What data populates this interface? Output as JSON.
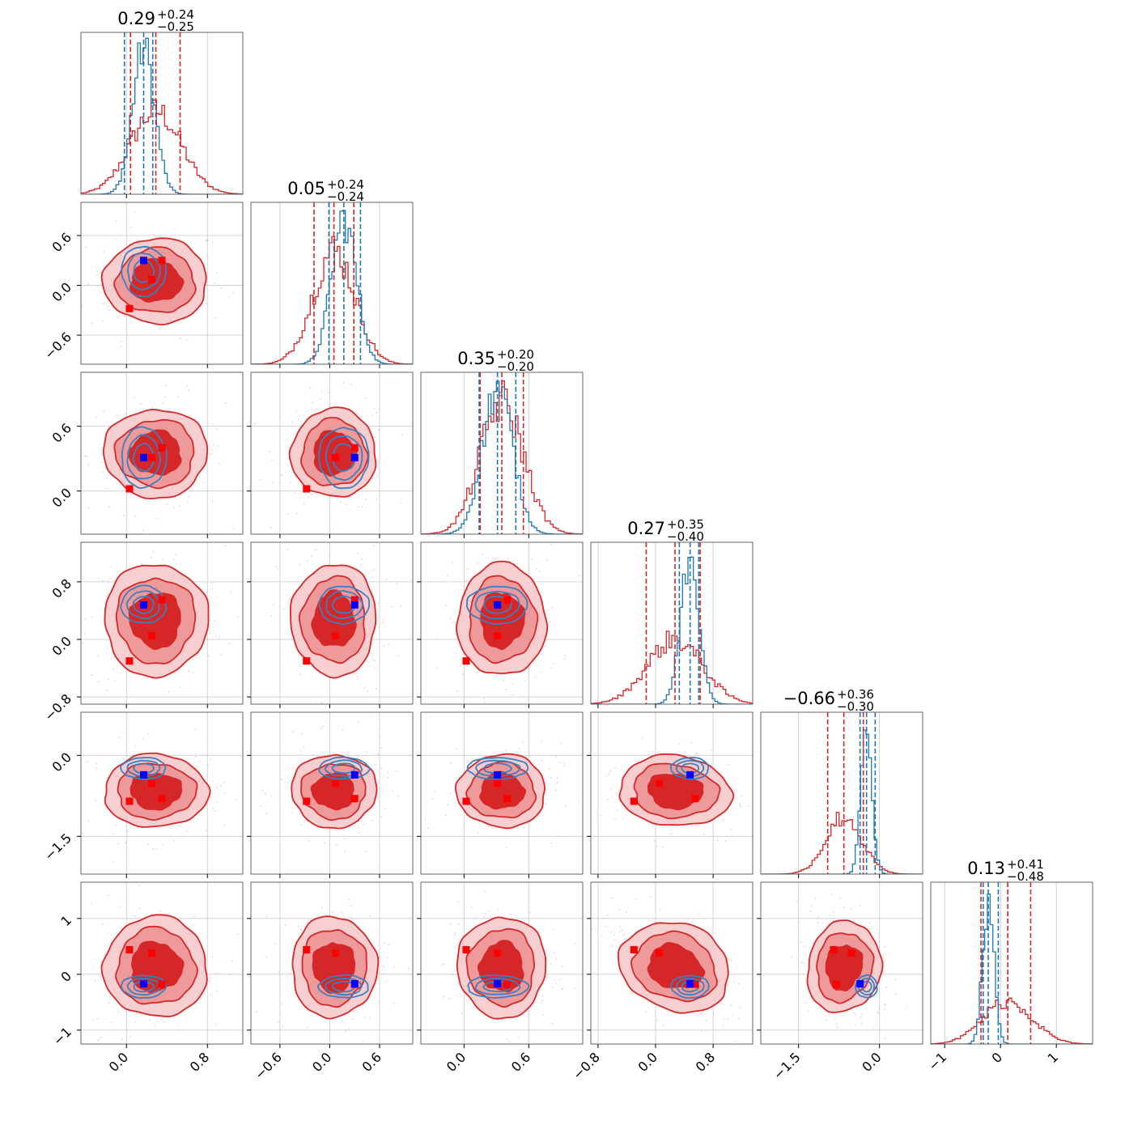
{
  "chart_data": {
    "type": "corner",
    "series": [
      {
        "name": "",
        "color": "#d62728",
        "fill_colors": [
          "#d62728",
          "#ee9a9b",
          "#f7cfd0"
        ]
      },
      {
        "name": "",
        "color": "#1f77b4"
      }
    ],
    "params": [
      {
        "title_value": "0.29",
        "title_plus": "+0.24",
        "title_minus": "−0.25",
        "range": [
          -0.45,
          1.15
        ],
        "ticks": [
          0.0,
          0.8
        ],
        "tick_labels": [
          "0.0",
          "0.8"
        ],
        "red_center": 0.29,
        "red_sd": 0.25,
        "red_quantiles": [
          0.04,
          0.29,
          0.53
        ],
        "blue_center": 0.17,
        "blue_sd": 0.11,
        "blue_quantiles": [
          -0.02,
          0.17,
          0.26
        ]
      },
      {
        "title_value": "0.05",
        "title_plus": "+0.24",
        "title_minus": "−0.24",
        "range": [
          -0.95,
          1.0
        ],
        "ticks": [
          -0.6,
          0.0,
          0.6
        ],
        "tick_labels": [
          "−0.6",
          "0.0",
          "0.6"
        ],
        "red_center": 0.05,
        "red_sd": 0.25,
        "red_quantiles": [
          -0.19,
          0.05,
          0.29
        ],
        "blue_center": 0.17,
        "blue_sd": 0.15,
        "blue_quantiles": [
          -0.01,
          0.17,
          0.37
        ]
      },
      {
        "title_value": "0.35",
        "title_plus": "+0.20",
        "title_minus": "−0.20",
        "range": [
          -0.4,
          1.1
        ],
        "ticks": [
          0.0,
          0.6
        ],
        "tick_labels": [
          "0.0",
          "0.6"
        ],
        "red_center": 0.35,
        "red_sd": 0.2,
        "red_quantiles": [
          0.15,
          0.35,
          0.55
        ],
        "blue_center": 0.31,
        "blue_sd": 0.14,
        "blue_quantiles": [
          0.14,
          0.31,
          0.48
        ]
      },
      {
        "title_value": "0.27",
        "title_plus": "+0.35",
        "title_minus": "−0.40",
        "range": [
          -0.9,
          1.35
        ],
        "ticks": [
          -0.8,
          0.0,
          0.8
        ],
        "tick_labels": [
          "−0.8",
          "0.0",
          "0.8"
        ],
        "red_center": 0.27,
        "red_sd": 0.38,
        "red_quantiles": [
          -0.13,
          0.27,
          0.62
        ],
        "blue_center": 0.48,
        "blue_sd": 0.13,
        "blue_quantiles": [
          0.33,
          0.48,
          0.6
        ]
      },
      {
        "title_value": "−0.66",
        "title_plus": "+0.36",
        "title_minus": "−0.30",
        "range": [
          -2.2,
          0.8
        ],
        "ticks": [
          -1.5,
          0.0
        ],
        "tick_labels": [
          "−1.5",
          "0.0"
        ],
        "red_center": -0.66,
        "red_sd": 0.33,
        "red_quantiles": [
          -0.96,
          -0.66,
          -0.3
        ],
        "blue_center": -0.24,
        "blue_sd": 0.1,
        "blue_quantiles": [
          -0.36,
          -0.24,
          -0.08
        ]
      },
      {
        "title_value": "0.13",
        "title_plus": "+0.41",
        "title_minus": "−0.48",
        "range": [
          -1.25,
          1.65
        ],
        "ticks": [
          -1,
          0,
          1
        ],
        "tick_labels": [
          "−1",
          "0",
          "1"
        ],
        "red_center": 0.13,
        "red_sd": 0.44,
        "red_quantiles": [
          -0.35,
          0.13,
          0.54
        ],
        "blue_center": -0.22,
        "blue_sd": 0.1,
        "blue_quantiles": [
          -0.31,
          -0.22,
          -0.04
        ]
      }
    ],
    "red_points": [
      [
        0.03,
        -0.28,
        0.02,
        -0.3,
        -0.85,
        0.44
      ],
      [
        0.35,
        0.3,
        0.4,
        0.55,
        -0.8,
        -0.18
      ],
      [
        0.25,
        0.07,
        0.31,
        0.05,
        -0.52,
        0.38
      ]
    ],
    "blue_point": [
      0.17,
      0.3,
      0.31,
      0.48,
      -0.36,
      -0.17
    ],
    "correlations": [
      [
        0,
        1,
        0.0
      ],
      [
        0,
        2,
        0.0
      ],
      [
        0,
        3,
        0.0
      ],
      [
        0,
        4,
        0.0
      ],
      [
        0,
        5,
        0.0
      ],
      [
        1,
        2,
        0.0
      ],
      [
        1,
        3,
        0.0
      ],
      [
        1,
        4,
        0.0
      ],
      [
        1,
        5,
        0.0
      ],
      [
        2,
        3,
        0.0
      ],
      [
        2,
        4,
        0.0
      ],
      [
        2,
        5,
        0.0
      ],
      [
        3,
        4,
        -0.15
      ],
      [
        3,
        5,
        -0.55
      ],
      [
        4,
        5,
        -0.35
      ]
    ],
    "grid": true,
    "legend": "none"
  }
}
